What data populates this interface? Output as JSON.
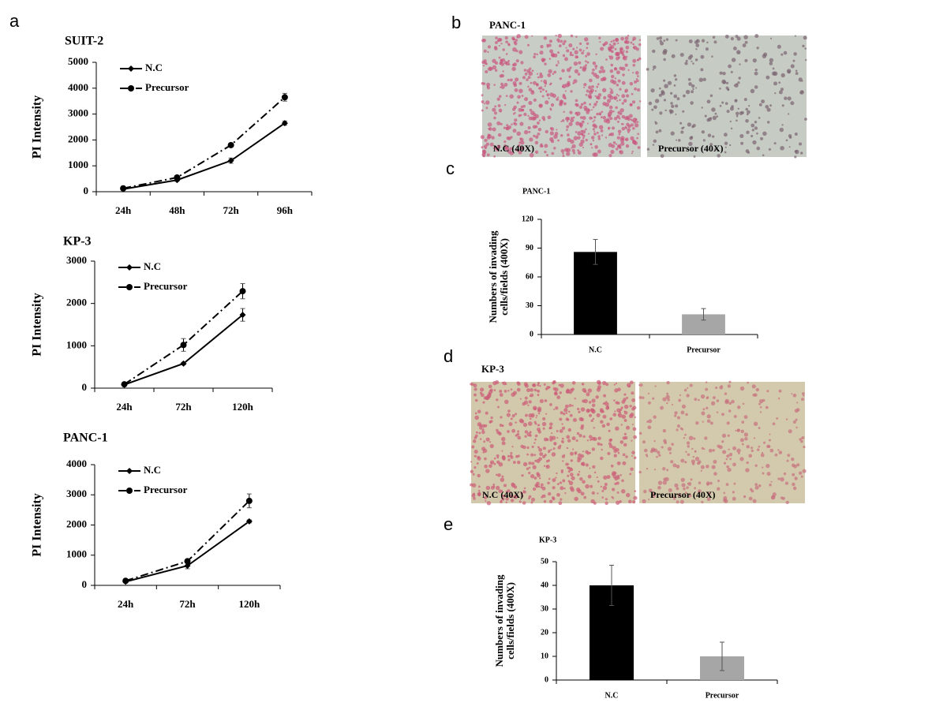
{
  "panel_labels": [
    "a",
    "b",
    "c",
    "d",
    "e"
  ],
  "micrographs": [
    {
      "title": "PANC-1",
      "labels": [
        "N.C  (40X)",
        "Precursor  (40X)"
      ]
    },
    {
      "title": "KP-3",
      "labels": [
        "N.C (40X)",
        "Precursor  (40X)"
      ]
    }
  ],
  "chart_data": [
    {
      "type": "line",
      "title": "SUIT-2",
      "y_label": "PI Intensity",
      "categories": [
        "24h",
        "48h",
        "72h",
        "96h"
      ],
      "ylim": [
        0,
        5000
      ],
      "yticks": [
        0,
        1000,
        2000,
        3000,
        4000,
        5000
      ],
      "series": [
        {
          "name": "N.C",
          "color": "#000000",
          "style": "solid",
          "marker": "diamond",
          "values": [
            100,
            450,
            1200,
            2650
          ],
          "errors": [
            20,
            50,
            100,
            80
          ]
        },
        {
          "name": "Precursor",
          "color": "#000000",
          "style": "dashdot",
          "marker": "circle",
          "values": [
            130,
            550,
            1800,
            3650
          ],
          "errors": [
            20,
            40,
            50,
            150
          ]
        }
      ]
    },
    {
      "type": "line",
      "title": "KP-3",
      "y_label": "PI Intensity",
      "categories": [
        "24h",
        "72h",
        "120h"
      ],
      "ylim": [
        0,
        3000
      ],
      "yticks": [
        0,
        1000,
        2000,
        3000
      ],
      "series": [
        {
          "name": "N.C",
          "color": "#000000",
          "style": "solid",
          "marker": "diamond",
          "values": [
            80,
            580,
            1730
          ],
          "errors": [
            10,
            30,
            150
          ]
        },
        {
          "name": "Precursor",
          "color": "#000000",
          "style": "dashdot",
          "marker": "circle",
          "values": [
            90,
            1020,
            2290
          ],
          "errors": [
            20,
            150,
            180
          ]
        }
      ]
    },
    {
      "type": "line",
      "title": "PANC-1",
      "y_label": "PI Intensity",
      "categories": [
        "24h",
        "72h",
        "120h"
      ],
      "ylim": [
        0,
        4000
      ],
      "yticks": [
        0,
        1000,
        2000,
        3000,
        4000
      ],
      "series": [
        {
          "name": "N.C",
          "color": "#000000",
          "style": "solid",
          "marker": "diamond",
          "values": [
            120,
            650,
            2120
          ],
          "errors": [
            20,
            100,
            50
          ]
        },
        {
          "name": "Precursor",
          "color": "#000000",
          "style": "dashdot",
          "marker": "circle",
          "values": [
            150,
            800,
            2800
          ],
          "errors": [
            20,
            50,
            230
          ]
        }
      ]
    },
    {
      "type": "bar",
      "title": "PANC-1",
      "y_label": [
        "Numbers of invading",
        "cells/fields (400X)"
      ],
      "categories": [
        "N.C",
        "Precursor"
      ],
      "values": [
        86,
        21
      ],
      "errors": [
        13,
        6
      ],
      "colors": [
        "#000000",
        "#a6a6a6"
      ],
      "ylim": [
        0,
        120
      ],
      "yticks": [
        0,
        30,
        60,
        90,
        120
      ]
    },
    {
      "type": "bar",
      "title": "KP-3",
      "y_label": [
        "Numbers of invading",
        "cells/fields (400X)"
      ],
      "categories": [
        "N.C",
        "Precursor"
      ],
      "values": [
        40,
        10
      ],
      "errors": [
        8.5,
        6
      ],
      "colors": [
        "#000000",
        "#a6a6a6"
      ],
      "ylim": [
        0,
        50
      ],
      "yticks": [
        0,
        10,
        20,
        30,
        40,
        50
      ]
    }
  ]
}
